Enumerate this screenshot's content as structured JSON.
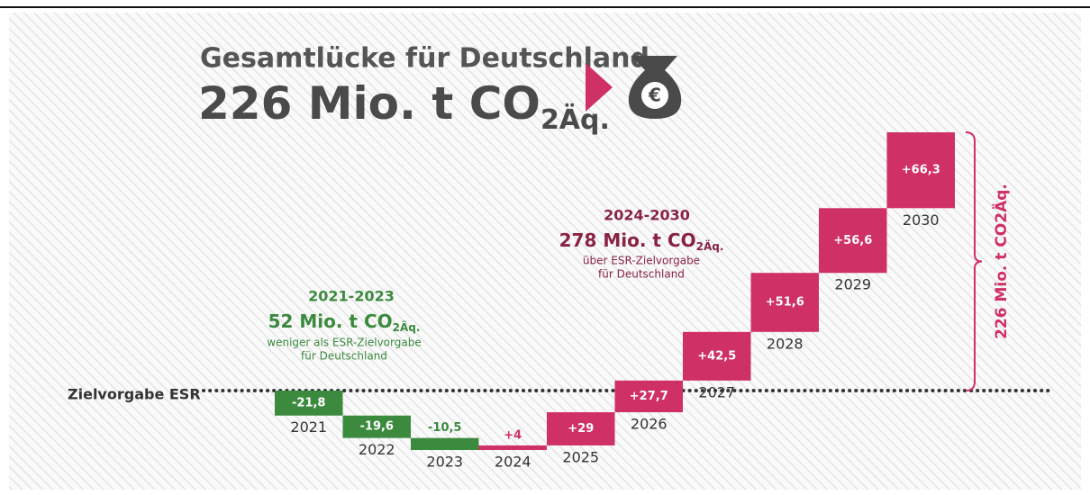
{
  "chart_data": {
    "type": "waterfall",
    "title": "Gesamtlücke für Deutschland",
    "headline": "226 Mio. t CO",
    "headline_sub": "2Äq.",
    "icon_label": "€",
    "baseline_label": "Zielvorgabe ESR",
    "categories": [
      "2021",
      "2022",
      "2023",
      "2024",
      "2025",
      "2026",
      "2027",
      "2028",
      "2029",
      "2030"
    ],
    "values": [
      -21.8,
      -19.6,
      -10.5,
      4,
      29,
      27.7,
      42.5,
      51.6,
      56.6,
      66.3
    ],
    "value_labels": [
      "-21,8",
      "-19,6",
      "-10,5",
      "+4",
      "+29",
      "+27,7",
      "+42,5",
      "+51,6",
      "+56,6",
      "+66,3"
    ],
    "negative_color": "#3b8a3e",
    "positive_color": "#cf3065",
    "annotations": [
      {
        "period": "2021-2023",
        "amount": "52 Mio. t CO",
        "amount_sub": "2Äq.",
        "line1": "weniger als ESR-Zielvorgabe",
        "line2": "für Deutschland"
      },
      {
        "period": "2024-2030",
        "amount": "278 Mio. t CO",
        "amount_sub": "2Äq.",
        "line1": "über ESR-Zielvorgabe",
        "line2": "für Deutschland"
      }
    ],
    "total_label": "226 Mio. t CO2Äq."
  }
}
